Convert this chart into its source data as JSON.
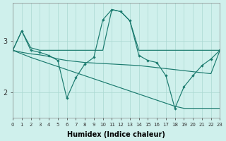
{
  "background_color": "#cff0ec",
  "line_color": "#1a7a6e",
  "grid_color": "#aad8d2",
  "xlabel": "Humidex (Indice chaleur)",
  "xlim": [
    0,
    23
  ],
  "ylim": [
    1.5,
    3.75
  ],
  "yticks": [
    2,
    3
  ],
  "series": [
    {
      "markers": false,
      "x": [
        0,
        1,
        2,
        3,
        4,
        5,
        6,
        7,
        8,
        9,
        10,
        11,
        12,
        13,
        14,
        15,
        16,
        17,
        18,
        19,
        20,
        21,
        22,
        23
      ],
      "y": [
        2.82,
        3.2,
        2.87,
        2.82,
        2.82,
        2.82,
        2.82,
        2.82,
        2.82,
        2.82,
        2.82,
        3.62,
        3.58,
        3.4,
        2.82,
        2.82,
        2.82,
        2.82,
        2.82,
        2.82,
        2.82,
        2.82,
        2.82,
        2.82
      ]
    },
    {
      "markers": false,
      "x": [
        0,
        1,
        2,
        3,
        4,
        5,
        6,
        7,
        8,
        9,
        10,
        11,
        12,
        13,
        14,
        15,
        16,
        17,
        18,
        19,
        20,
        21,
        22,
        23
      ],
      "y": [
        2.82,
        2.78,
        2.75,
        2.73,
        2.7,
        2.65,
        2.62,
        2.6,
        2.58,
        2.57,
        2.56,
        2.55,
        2.54,
        2.53,
        2.52,
        2.5,
        2.48,
        2.46,
        2.44,
        2.42,
        2.4,
        2.38,
        2.36,
        2.82
      ]
    },
    {
      "markers": false,
      "x": [
        0,
        1,
        2,
        3,
        4,
        5,
        6,
        7,
        8,
        9,
        10,
        11,
        12,
        13,
        14,
        15,
        16,
        17,
        18,
        19,
        20,
        21,
        22,
        23
      ],
      "y": [
        2.82,
        2.75,
        2.68,
        2.62,
        2.56,
        2.5,
        2.44,
        2.38,
        2.32,
        2.26,
        2.2,
        2.14,
        2.08,
        2.02,
        1.96,
        1.9,
        1.84,
        1.78,
        1.72,
        1.68,
        1.68,
        1.68,
        1.68,
        1.68
      ]
    },
    {
      "markers": true,
      "x": [
        0,
        1,
        2,
        3,
        4,
        5,
        6,
        7,
        8,
        9,
        10,
        11,
        12,
        13,
        14,
        15,
        16,
        17,
        18,
        19,
        20,
        21,
        22,
        23
      ],
      "y": [
        2.82,
        3.2,
        2.82,
        2.78,
        2.72,
        2.62,
        1.88,
        2.28,
        2.55,
        2.68,
        3.42,
        3.62,
        3.58,
        3.4,
        2.72,
        2.62,
        2.58,
        2.32,
        1.68,
        2.1,
        2.32,
        2.52,
        2.65,
        2.82
      ]
    }
  ]
}
